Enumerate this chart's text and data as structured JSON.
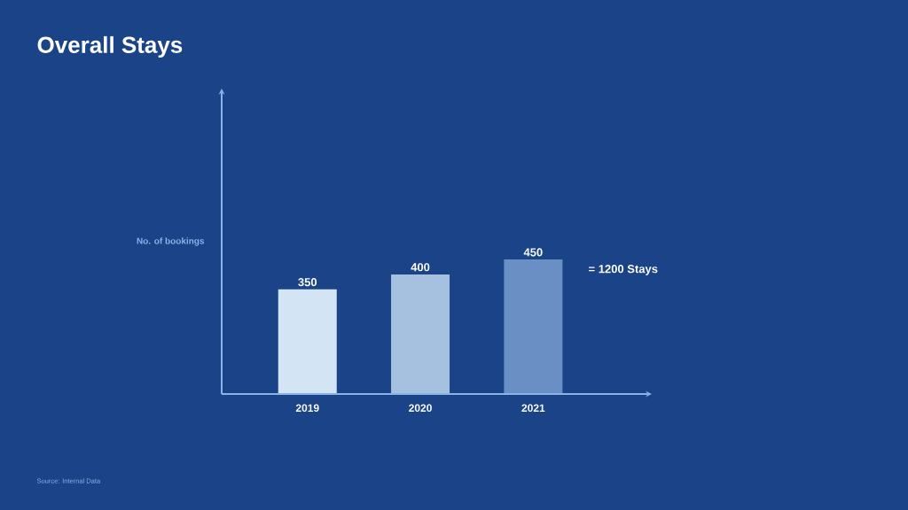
{
  "chart_data": {
    "type": "bar",
    "title": "Overall Stays",
    "ylabel": "No. of bookings",
    "categories": [
      "2019",
      "2020",
      "2021"
    ],
    "values": [
      350,
      400,
      450
    ],
    "colors": [
      "#d3e4f5",
      "#a6c1e0",
      "#6a8fc5"
    ],
    "data_labels": true,
    "annotations": [
      "= 1200 Stays",
      "Source: Internal Data"
    ]
  }
}
